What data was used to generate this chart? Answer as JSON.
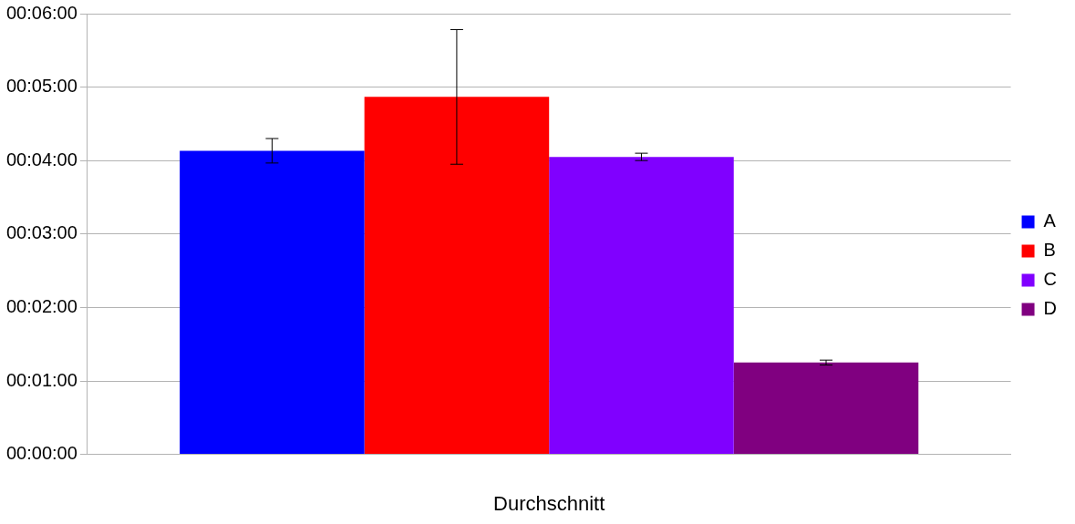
{
  "chart_data": {
    "type": "bar",
    "xlabel": "Durchschnitt",
    "categories": [
      null
    ],
    "series": [
      {
        "name": "A",
        "color": "#0000ff",
        "values": [
          248
        ],
        "errors": [
          10
        ]
      },
      {
        "name": "B",
        "color": "#ff0000",
        "values": [
          292
        ],
        "errors": [
          55
        ]
      },
      {
        "name": "C",
        "color": "#8000ff",
        "values": [
          243
        ],
        "errors": [
          3
        ]
      },
      {
        "name": "D",
        "color": "#800080",
        "values": [
          75
        ],
        "errors": [
          2
        ]
      }
    ],
    "ylim": [
      0,
      360
    ],
    "yticks": [
      {
        "value": 0,
        "label": "00:00:00"
      },
      {
        "value": 60,
        "label": "00:01:00"
      },
      {
        "value": 120,
        "label": "00:02:00"
      },
      {
        "value": 180,
        "label": "00:03:00"
      },
      {
        "value": 240,
        "label": "00:04:00"
      },
      {
        "value": 300,
        "label": "00:05:00"
      },
      {
        "value": 360,
        "label": "00:06:00"
      }
    ],
    "grid": "y",
    "legend": "right"
  }
}
